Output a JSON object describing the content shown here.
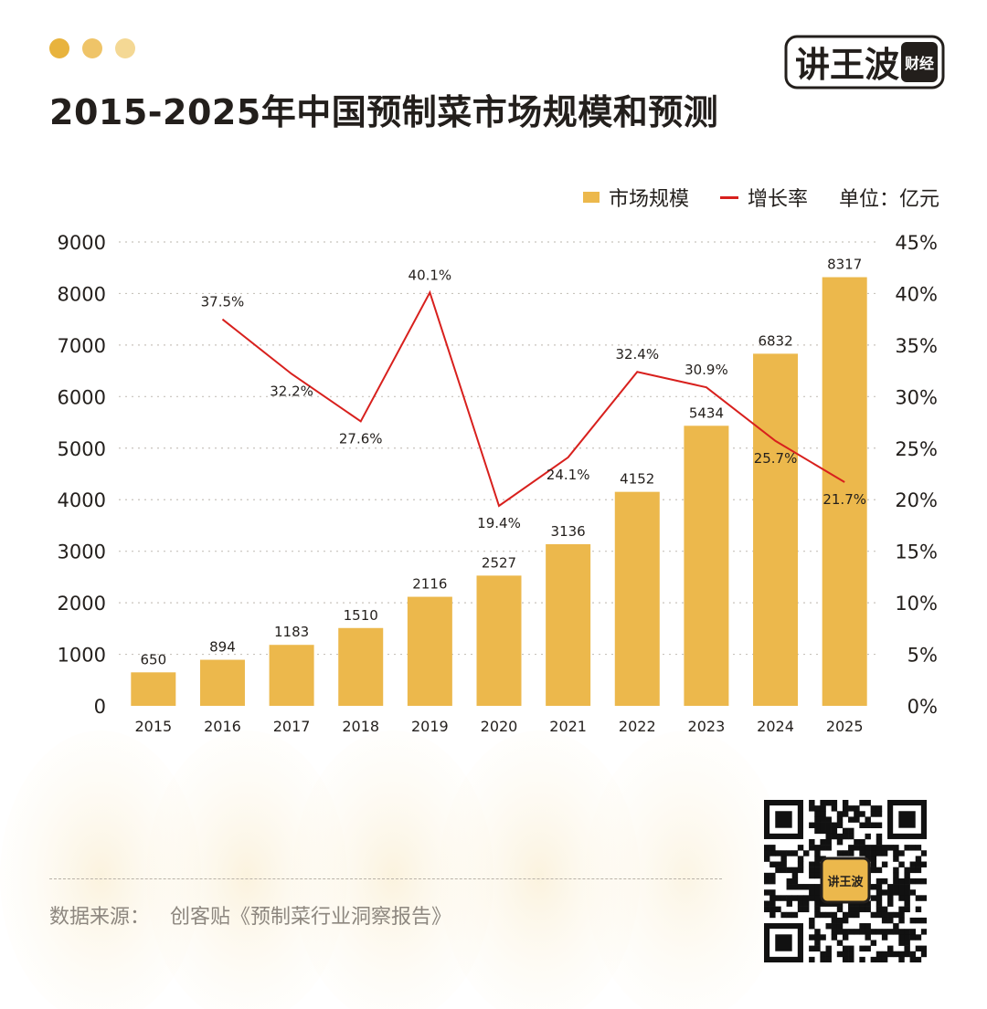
{
  "header": {
    "title": "2015-2025年中国预制菜市场规模和预测",
    "dots": [
      "#e8b33d",
      "#efc468",
      "#f4d894"
    ],
    "brand_text": "讲王波",
    "brand_sub": "财经"
  },
  "legend": {
    "bar_label": "市场规模",
    "line_label": "增长率",
    "unit_label": "单位：亿元"
  },
  "colors": {
    "bar": "#ecb84c",
    "line": "#d8201d",
    "grid": "#c8c3bc",
    "text": "#231f1c",
    "source_text": "#8d877f"
  },
  "chart_data": {
    "type": "bar",
    "categories": [
      "2015",
      "2016",
      "2017",
      "2018",
      "2019",
      "2020",
      "2021",
      "2022",
      "2023",
      "2024",
      "2025"
    ],
    "series": [
      {
        "name": "市场规模",
        "type": "bar",
        "axis": "left",
        "values": [
          650,
          894,
          1183,
          1510,
          2116,
          2527,
          3136,
          4152,
          5434,
          6832,
          8317
        ],
        "labels": [
          "650",
          "894",
          "1183",
          "1510",
          "2116",
          "2527",
          "3136",
          "4152",
          "5434",
          "6832",
          "8317"
        ]
      },
      {
        "name": "增长率",
        "type": "line",
        "axis": "right",
        "values": [
          null,
          37.5,
          32.2,
          27.6,
          40.1,
          19.4,
          24.1,
          32.4,
          30.9,
          25.7,
          21.7
        ],
        "labels": [
          null,
          "37.5%",
          "32.2%",
          "27.6%",
          "40.1%",
          "19.4%",
          "24.1%",
          "32.4%",
          "30.9%",
          "25.7%",
          "21.7%"
        ]
      }
    ],
    "ylim_left": [
      0,
      9000
    ],
    "yticks_left": [
      "0",
      "1000",
      "2000",
      "3000",
      "4000",
      "5000",
      "6000",
      "7000",
      "8000",
      "9000"
    ],
    "ylim_right": [
      0,
      45
    ],
    "yticks_right": [
      "0%",
      "5%",
      "10%",
      "15%",
      "20%",
      "25%",
      "30%",
      "35%",
      "40%",
      "45%"
    ],
    "grid": true,
    "legend_position": "top-right"
  },
  "footer": {
    "source_label": "数据来源：",
    "source_text": "创客贴《预制菜行业洞察报告》"
  }
}
